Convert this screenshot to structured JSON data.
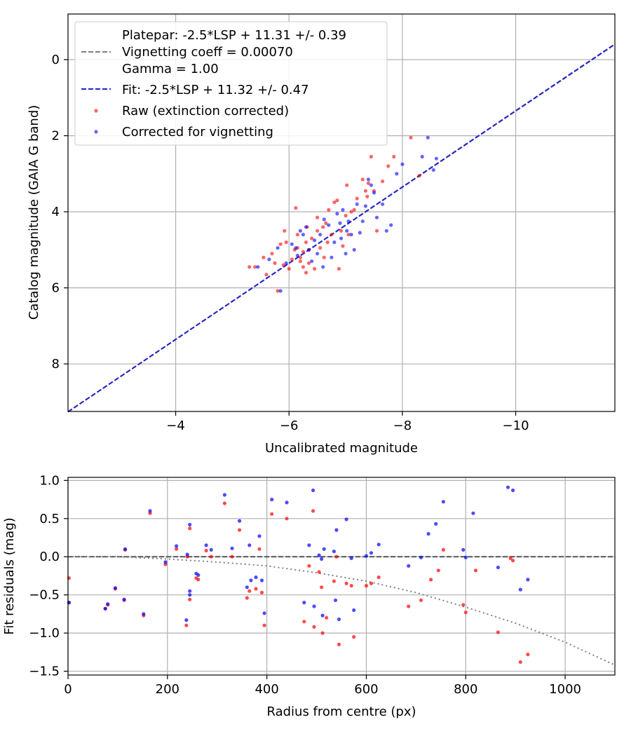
{
  "chart_data": [
    {
      "type": "scatter",
      "xlabel": "Uncalibrated magnitude",
      "ylabel": "Catalog magnitude (GAIA G band)",
      "xlim": [
        -2.1,
        -11.75
      ],
      "ylim": [
        9.25,
        -1.2
      ],
      "x_inverted": true,
      "y_inverted": true,
      "xticks": [
        -4,
        -6,
        -8,
        -10
      ],
      "xtick_labels": [
        "−4",
        "−6",
        "−8",
        "−10"
      ],
      "yticks": [
        0,
        2,
        4,
        6,
        8
      ],
      "ytick_labels": [
        "0",
        "2",
        "4",
        "6",
        "8"
      ],
      "grid": true,
      "legend_placement": "top-left",
      "lines": [
        {
          "name": "Platepar: -2.5*LSP + 11.31 +/- 0.39\nVignetting coeff = 0.00070\nGamma = 1.00",
          "style": "dashed",
          "color": "#808080",
          "x": [
            -2.1,
            -11.75
          ],
          "y": [
            9.26,
            -0.4
          ]
        },
        {
          "name": "Fit: -2.5*LSP + 11.32 +/- 0.47",
          "style": "dashed",
          "color": "#2222cc",
          "x": [
            -2.1,
            -11.75
          ],
          "y": [
            9.26,
            -0.41
          ]
        }
      ],
      "series": [
        {
          "name": "Raw (extinction corrected)",
          "color": "#ff0000",
          "points": [
            [
              -5.3,
              5.45
            ],
            [
              -5.4,
              5.45
            ],
            [
              -5.55,
              5.2
            ],
            [
              -5.6,
              5.65
            ],
            [
              -5.7,
              5.1
            ],
            [
              -5.75,
              5.35
            ],
            [
              -5.8,
              6.08
            ],
            [
              -5.85,
              4.85
            ],
            [
              -5.92,
              4.5
            ],
            [
              -5.95,
              4.8
            ],
            [
              -5.9,
              5.4
            ],
            [
              -6.0,
              5.5
            ],
            [
              -6.05,
              5.25
            ],
            [
              -6.1,
              5.0
            ],
            [
              -6.12,
              3.9
            ],
            [
              -6.15,
              4.6
            ],
            [
              -6.15,
              4.95
            ],
            [
              -6.2,
              5.2
            ],
            [
              -6.2,
              5.3
            ],
            [
              -6.25,
              5.45
            ],
            [
              -6.25,
              5.05
            ],
            [
              -6.3,
              4.8
            ],
            [
              -6.3,
              5.6
            ],
            [
              -6.32,
              4.4
            ],
            [
              -6.35,
              5.0
            ],
            [
              -6.35,
              5.35
            ],
            [
              -6.4,
              4.7
            ],
            [
              -6.45,
              5.5
            ],
            [
              -6.5,
              4.15
            ],
            [
              -6.5,
              4.5
            ],
            [
              -6.55,
              4.95
            ],
            [
              -6.6,
              4.4
            ],
            [
              -6.62,
              5.2
            ],
            [
              -6.65,
              4.3
            ],
            [
              -6.68,
              4.8
            ],
            [
              -6.7,
              3.95
            ],
            [
              -6.75,
              4.6
            ],
            [
              -6.8,
              3.75
            ],
            [
              -6.85,
              3.7
            ],
            [
              -6.88,
              5.5
            ],
            [
              -6.92,
              4.5
            ],
            [
              -6.95,
              4.9
            ],
            [
              -7.0,
              4.1
            ],
            [
              -7.02,
              3.3
            ],
            [
              -7.05,
              4.6
            ],
            [
              -7.1,
              4.0
            ],
            [
              -7.15,
              3.95
            ],
            [
              -7.2,
              3.65
            ],
            [
              -7.3,
              3.15
            ],
            [
              -7.35,
              3.45
            ],
            [
              -7.38,
              3.6
            ],
            [
              -7.4,
              3.25
            ],
            [
              -7.45,
              2.55
            ],
            [
              -7.5,
              3.45
            ],
            [
              -7.55,
              4.5
            ],
            [
              -7.65,
              3.2
            ],
            [
              -7.75,
              2.8
            ],
            [
              -7.85,
              2.55
            ],
            [
              -8.15,
              2.05
            ],
            [
              -8.3,
              3.05
            ]
          ]
        },
        {
          "name": "Corrected for vignetting",
          "color": "#0000ff",
          "points": [
            [
              -5.45,
              5.45
            ],
            [
              -5.65,
              5.25
            ],
            [
              -5.8,
              4.95
            ],
            [
              -5.85,
              6.08
            ],
            [
              -5.95,
              5.35
            ],
            [
              -6.05,
              4.85
            ],
            [
              -6.12,
              4.95
            ],
            [
              -6.15,
              5.15
            ],
            [
              -6.2,
              4.5
            ],
            [
              -6.25,
              4.6
            ],
            [
              -6.3,
              4.4
            ],
            [
              -6.35,
              5.0
            ],
            [
              -6.4,
              5.3
            ],
            [
              -6.45,
              4.75
            ],
            [
              -6.5,
              5.1
            ],
            [
              -6.55,
              4.6
            ],
            [
              -6.6,
              5.45
            ],
            [
              -6.62,
              4.2
            ],
            [
              -6.7,
              4.35
            ],
            [
              -6.75,
              5.2
            ],
            [
              -6.8,
              4.8
            ],
            [
              -6.85,
              4.05
            ],
            [
              -6.9,
              4.3
            ],
            [
              -6.92,
              4.7
            ],
            [
              -6.95,
              3.95
            ],
            [
              -7.0,
              5.1
            ],
            [
              -7.02,
              4.5
            ],
            [
              -7.05,
              4.25
            ],
            [
              -7.1,
              4.6
            ],
            [
              -7.15,
              5.0
            ],
            [
              -7.2,
              3.8
            ],
            [
              -7.25,
              4.55
            ],
            [
              -7.3,
              4.25
            ],
            [
              -7.35,
              3.85
            ],
            [
              -7.4,
              3.15
            ],
            [
              -7.45,
              3.3
            ],
            [
              -7.5,
              3.5
            ],
            [
              -7.55,
              4.15
            ],
            [
              -7.65,
              3.8
            ],
            [
              -7.72,
              4.5
            ],
            [
              -7.8,
              4.35
            ],
            [
              -7.9,
              3.0
            ],
            [
              -8.0,
              2.75
            ],
            [
              -8.35,
              2.55
            ],
            [
              -8.45,
              2.05
            ],
            [
              -8.55,
              2.9
            ],
            [
              -8.6,
              2.6
            ]
          ]
        }
      ]
    },
    {
      "type": "scatter",
      "xlabel": "Radius from centre (px)",
      "ylabel": "Fit residuals (mag)",
      "xlim": [
        0,
        1100
      ],
      "ylim": [
        -1.55,
        1.04
      ],
      "xticks": [
        0,
        200,
        400,
        600,
        800,
        1000
      ],
      "xtick_labels": [
        "0",
        "200",
        "400",
        "600",
        "800",
        "1000"
      ],
      "yticks": [
        -1.5,
        -1.0,
        -0.5,
        0.0,
        0.5,
        1.0
      ],
      "ytick_labels": [
        "−1.5",
        "−1.0",
        "−0.5",
        "0.0",
        "0.5",
        "1.0"
      ],
      "grid": true,
      "lines": [
        {
          "style": "dashed",
          "color": "#555555",
          "x": [
            0,
            1100
          ],
          "y": [
            0,
            0
          ]
        },
        {
          "style": "dotted",
          "color": "#808080",
          "x": [
            0,
            100,
            200,
            300,
            400,
            500,
            600,
            700,
            800,
            900,
            1000,
            1100
          ],
          "y": [
            0,
            0,
            -0.03,
            -0.07,
            -0.12,
            -0.21,
            -0.32,
            -0.47,
            -0.66,
            -0.87,
            -1.12,
            -1.42
          ]
        }
      ],
      "series": [
        {
          "name": "Raw",
          "color": "#ff0000",
          "points": [
            [
              2,
              -0.28
            ],
            [
              2,
              -0.6
            ],
            [
              75,
              -0.68
            ],
            [
              80,
              -0.63
            ],
            [
              95,
              -0.42
            ],
            [
              113,
              -0.57
            ],
            [
              115,
              0.09
            ],
            [
              152,
              -0.77
            ],
            [
              165,
              0.57
            ],
            [
              196,
              -0.1
            ],
            [
              218,
              0.1
            ],
            [
              238,
              -0.9
            ],
            [
              240,
              0.0
            ],
            [
              245,
              0.37
            ],
            [
              245,
              -0.56
            ],
            [
              258,
              -0.28
            ],
            [
              262,
              -0.3
            ],
            [
              278,
              0.08
            ],
            [
              288,
              0.0
            ],
            [
              315,
              0.7
            ],
            [
              330,
              0.0
            ],
            [
              345,
              0.35
            ],
            [
              360,
              -0.54
            ],
            [
              365,
              -0.45
            ],
            [
              378,
              -0.42
            ],
            [
              385,
              0.1
            ],
            [
              390,
              -0.47
            ],
            [
              395,
              -0.9
            ],
            [
              410,
              0.56
            ],
            [
              440,
              0.5
            ],
            [
              475,
              -0.85
            ],
            [
              485,
              -0.12
            ],
            [
              493,
              0.6
            ],
            [
              495,
              -0.92
            ],
            [
              505,
              -0.2
            ],
            [
              510,
              -0.4
            ],
            [
              512,
              -1.0
            ],
            [
              520,
              -0.8
            ],
            [
              535,
              -0.32
            ],
            [
              540,
              0.0
            ],
            [
              545,
              -1.15
            ],
            [
              560,
              -0.35
            ],
            [
              570,
              -0.38
            ],
            [
              575,
              -1.05
            ],
            [
              600,
              -0.38
            ],
            [
              610,
              -0.35
            ],
            [
              625,
              -0.27
            ],
            [
              685,
              -0.65
            ],
            [
              710,
              -0.57
            ],
            [
              730,
              -0.3
            ],
            [
              745,
              -0.18
            ],
            [
              755,
              0.09
            ],
            [
              795,
              -0.63
            ],
            [
              800,
              -0.73
            ],
            [
              820,
              -0.18
            ],
            [
              865,
              -0.99
            ],
            [
              890,
              -0.02
            ],
            [
              895,
              -0.05
            ],
            [
              910,
              -1.38
            ],
            [
              925,
              -1.28
            ]
          ]
        },
        {
          "name": "Corrected",
          "color": "#0000ff",
          "points": [
            [
              2,
              -0.6
            ],
            [
              75,
              -0.68
            ],
            [
              80,
              -0.62
            ],
            [
              95,
              -0.41
            ],
            [
              113,
              -0.56
            ],
            [
              115,
              0.1
            ],
            [
              152,
              -0.75
            ],
            [
              165,
              0.6
            ],
            [
              196,
              -0.07
            ],
            [
              218,
              0.14
            ],
            [
              238,
              -0.83
            ],
            [
              240,
              0.03
            ],
            [
              245,
              0.42
            ],
            [
              245,
              -0.45
            ],
            [
              245,
              -0.5
            ],
            [
              258,
              -0.22
            ],
            [
              262,
              -0.24
            ],
            [
              278,
              0.15
            ],
            [
              288,
              0.09
            ],
            [
              315,
              0.81
            ],
            [
              330,
              0.11
            ],
            [
              345,
              0.47
            ],
            [
              360,
              -0.4
            ],
            [
              365,
              0.15
            ],
            [
              368,
              -0.31
            ],
            [
              378,
              -0.27
            ],
            [
              385,
              0.27
            ],
            [
              390,
              -0.31
            ],
            [
              395,
              -0.74
            ],
            [
              410,
              0.75
            ],
            [
              440,
              0.71
            ],
            [
              475,
              -0.6
            ],
            [
              485,
              0.15
            ],
            [
              493,
              0.87
            ],
            [
              495,
              -0.65
            ],
            [
              505,
              0.02
            ],
            [
              510,
              -0.03
            ],
            [
              512,
              -0.77
            ],
            [
              515,
              0.1
            ],
            [
              535,
              0.07
            ],
            [
              538,
              -0.57
            ],
            [
              540,
              0.35
            ],
            [
              545,
              -0.82
            ],
            [
              560,
              0.49
            ],
            [
              570,
              -0.02
            ],
            [
              575,
              -0.7
            ],
            [
              600,
              0.01
            ],
            [
              610,
              0.05
            ],
            [
              625,
              0.16
            ],
            [
              685,
              -0.12
            ],
            [
              710,
              -0.01
            ],
            [
              725,
              0.3
            ],
            [
              740,
              0.43
            ],
            [
              755,
              0.72
            ],
            [
              795,
              0.09
            ],
            [
              800,
              -0.01
            ],
            [
              815,
              0.57
            ],
            [
              865,
              -0.14
            ],
            [
              885,
              0.91
            ],
            [
              895,
              0.87
            ],
            [
              910,
              -0.43
            ],
            [
              925,
              -0.3
            ]
          ]
        }
      ]
    }
  ],
  "legend": {
    "entry1_line1": "Platepar: -2.5*LSP + 11.31 +/- 0.39",
    "entry1_line2": "Vignetting coeff = 0.00070",
    "entry1_line3": "Gamma = 1.00",
    "entry2": "Fit: -2.5*LSP + 11.32 +/- 0.47",
    "entry3": "Raw (extinction corrected)",
    "entry4": "Corrected for vignetting"
  },
  "colors": {
    "raw": "#ff0000",
    "corrected": "#0000ff",
    "fit": "#2222cc",
    "platepar": "#808080",
    "grid": "#b0b0b0"
  }
}
